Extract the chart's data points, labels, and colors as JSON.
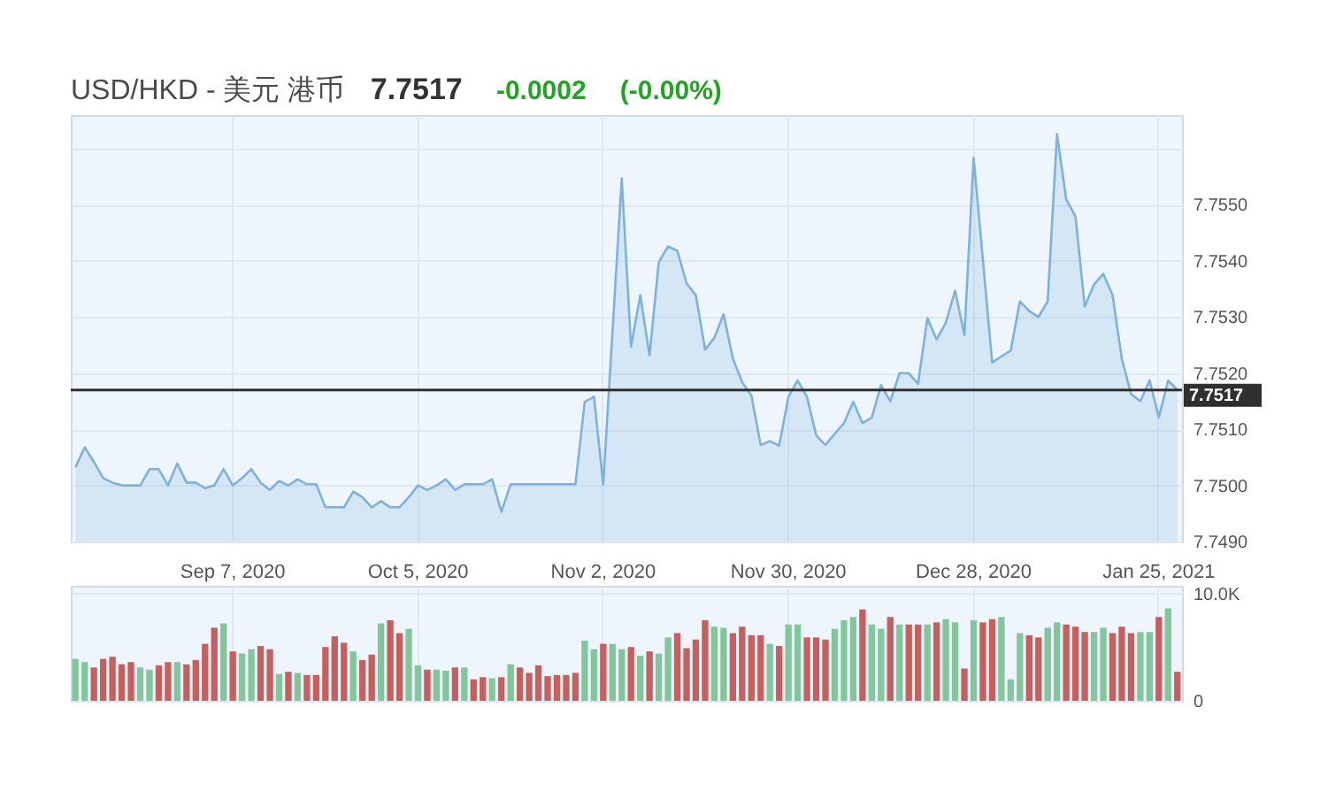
{
  "chart_data": [
    {
      "type": "area",
      "title": "USD/HKD - 美元 港币",
      "annotations": [
        "7.7517",
        "-0.0002",
        "(-0.00%)"
      ],
      "categories": [
        null,
        null,
        null,
        null,
        null,
        null,
        null,
        null,
        null,
        null,
        null,
        null,
        null,
        null,
        null,
        null,
        null,
        "Sep 7, 2020",
        null,
        null,
        null,
        null,
        null,
        null,
        null,
        null,
        null,
        null,
        null,
        null,
        null,
        null,
        null,
        null,
        null,
        null,
        null,
        "Oct 5, 2020",
        null,
        null,
        null,
        null,
        null,
        null,
        null,
        null,
        null,
        null,
        null,
        null,
        null,
        null,
        null,
        null,
        null,
        null,
        null,
        "Nov 2, 2020",
        null,
        null,
        null,
        null,
        null,
        null,
        null,
        null,
        null,
        null,
        null,
        null,
        null,
        null,
        null,
        null,
        null,
        null,
        null,
        "Nov 30, 2020",
        null,
        null,
        null,
        null,
        null,
        null,
        null,
        null,
        null,
        null,
        null,
        null,
        null,
        null,
        null,
        null,
        null,
        null,
        null,
        "Dec 28, 2020",
        null,
        null,
        null,
        null,
        null,
        null,
        null,
        null,
        null,
        null,
        null,
        null,
        null,
        null,
        null,
        null,
        null,
        null,
        null,
        "Jan 25, 2021",
        null,
        null
      ],
      "values": [
        7.75032,
        7.75068,
        7.75042,
        7.75013,
        7.75005,
        7.75,
        7.75,
        7.75,
        7.75029,
        7.75029,
        7.75,
        7.75039,
        7.75005,
        7.75005,
        7.74995,
        7.75,
        7.75029,
        7.75,
        7.75013,
        7.75029,
        7.75005,
        7.74992,
        7.75008,
        7.75,
        7.75011,
        7.75002,
        7.75002,
        7.74961,
        7.74961,
        7.74961,
        7.74989,
        7.74979,
        7.74961,
        7.74972,
        7.74961,
        7.74961,
        7.74979,
        7.75,
        7.74992,
        7.75,
        7.75011,
        7.74992,
        7.75002,
        7.75002,
        7.75002,
        7.75011,
        7.74953,
        7.75002,
        7.75002,
        7.75002,
        7.75002,
        7.75002,
        7.75002,
        7.75002,
        7.75002,
        7.75149,
        7.75158,
        7.75002,
        7.75274,
        7.75547,
        7.75247,
        7.75339,
        7.75232,
        7.75398,
        7.75426,
        7.75418,
        7.7536,
        7.75339,
        7.75242,
        7.75263,
        7.75305,
        7.75226,
        7.75184,
        7.7516,
        7.75072,
        7.75079,
        7.75071,
        7.75158,
        7.75187,
        7.75158,
        7.75089,
        7.75072,
        7.75092,
        7.75111,
        7.75149,
        7.75111,
        7.75121,
        7.75179,
        7.7515,
        7.752,
        7.752,
        7.75181,
        7.75298,
        7.7526,
        7.7529,
        7.75347,
        7.75268,
        7.75584,
        7.75402,
        7.75219,
        7.7523,
        7.7524,
        7.75328,
        7.75311,
        7.753,
        7.75328,
        7.75626,
        7.7551,
        7.75479,
        7.75319,
        7.75358,
        7.75377,
        7.75339,
        7.75226,
        7.75163,
        7.7515,
        7.75187,
        7.75121,
        7.75187,
        7.7517
      ],
      "color": "#7fb1dd",
      "ylim": [
        7.749,
        7.7566
      ],
      "yticks": [
        {
          "value": 7.749,
          "label": "7.7490"
        },
        {
          "value": 7.75,
          "label": "7.7500"
        },
        {
          "value": 7.751,
          "label": "7.7510"
        },
        {
          "value": 7.752,
          "label": "7.7520"
        },
        {
          "value": 7.753,
          "label": "7.7530"
        },
        {
          "value": 7.754,
          "label": "7.7540"
        },
        {
          "value": 7.755,
          "label": "7.7550"
        },
        {
          "value": 7.756,
          "label": null
        }
      ],
      "grid": true,
      "ref_lines": [
        {
          "axis": "y",
          "value": 7.7517,
          "label": "7.7517",
          "color": "#2f2f2f"
        }
      ]
    },
    {
      "type": "bar",
      "categories": [
        null,
        null,
        null,
        null,
        null,
        null,
        null,
        null,
        null,
        null,
        null,
        null,
        null,
        null,
        null,
        null,
        null,
        null,
        null,
        null,
        null,
        null,
        null,
        null,
        null,
        null,
        null,
        null,
        null,
        null,
        null,
        null,
        null,
        null,
        null,
        null,
        null,
        null,
        null,
        null,
        null,
        null,
        null,
        null,
        null,
        null,
        null,
        null,
        null,
        null,
        null,
        null,
        null,
        null,
        null,
        null,
        null,
        null,
        null,
        null,
        null,
        null,
        null,
        null,
        null,
        null,
        null,
        null,
        null,
        null,
        null,
        null,
        null,
        null,
        null,
        null,
        null,
        null,
        null,
        null,
        null,
        null,
        null,
        null,
        null,
        null,
        null,
        null,
        null,
        null,
        null,
        null,
        null,
        null,
        null,
        null,
        null,
        null,
        null,
        null,
        null,
        null,
        null,
        null,
        null,
        null,
        null,
        null,
        null,
        null,
        null,
        null,
        null,
        null,
        null,
        null,
        null,
        null,
        null,
        null
      ],
      "values": [
        3900,
        3600,
        3100,
        3900,
        4100,
        3400,
        3600,
        3100,
        2900,
        3300,
        3600,
        3600,
        3400,
        3800,
        5300,
        6800,
        7200,
        4600,
        4400,
        4800,
        5100,
        4800,
        2500,
        2700,
        2600,
        2400,
        2400,
        5000,
        6000,
        5400,
        4600,
        3800,
        4300,
        7200,
        7500,
        6300,
        6700,
        3300,
        2900,
        2900,
        2800,
        3100,
        3100,
        2000,
        2200,
        2100,
        2200,
        3400,
        3100,
        2600,
        3300,
        2300,
        2400,
        2400,
        2600,
        5600,
        4800,
        5300,
        5300,
        4800,
        5000,
        4200,
        4600,
        4400,
        5900,
        6300,
        4900,
        5700,
        7500,
        6900,
        6800,
        6300,
        6900,
        6100,
        6100,
        5300,
        5100,
        7100,
        7100,
        5900,
        5900,
        5700,
        6700,
        7500,
        7800,
        8500,
        7100,
        6700,
        7800,
        7100,
        7100,
        7100,
        7100,
        7300,
        7600,
        7300,
        3000,
        7500,
        7300,
        7600,
        7800,
        2000,
        6300,
        6100,
        5900,
        6800,
        7300,
        7100,
        6900,
        6400,
        6400,
        6800,
        6300,
        6900,
        6300,
        6400,
        6400,
        7800,
        8600,
        2700
      ],
      "colors": [
        "#84c69c",
        "#84c69c",
        "#c5605e",
        "#c5605e",
        "#c5605e",
        "#c5605e",
        "#c5605e",
        "#84c69c",
        "#84c69c",
        "#c5605e",
        "#c5605e",
        "#84c69c",
        "#c5605e",
        "#c5605e",
        "#c5605e",
        "#c5605e",
        "#84c69c",
        "#c5605e",
        "#84c69c",
        "#84c69c",
        "#c5605e",
        "#c5605e",
        "#84c69c",
        "#c5605e",
        "#84c69c",
        "#c5605e",
        "#c5605e",
        "#c5605e",
        "#c5605e",
        "#c5605e",
        "#84c69c",
        "#c5605e",
        "#c5605e",
        "#84c69c",
        "#c5605e",
        "#c5605e",
        "#84c69c",
        "#84c69c",
        "#c5605e",
        "#84c69c",
        "#84c69c",
        "#c5605e",
        "#84c69c",
        "#c5605e",
        "#c5605e",
        "#84c69c",
        "#c5605e",
        "#84c69c",
        "#c5605e",
        "#c5605e",
        "#c5605e",
        "#c5605e",
        "#c5605e",
        "#c5605e",
        "#c5605e",
        "#84c69c",
        "#84c69c",
        "#c5605e",
        "#84c69c",
        "#84c69c",
        "#c5605e",
        "#84c69c",
        "#c5605e",
        "#84c69c",
        "#84c69c",
        "#c5605e",
        "#c5605e",
        "#c5605e",
        "#c5605e",
        "#84c69c",
        "#84c69c",
        "#c5605e",
        "#c5605e",
        "#c5605e",
        "#c5605e",
        "#84c69c",
        "#c5605e",
        "#84c69c",
        "#84c69c",
        "#c5605e",
        "#c5605e",
        "#c5605e",
        "#84c69c",
        "#84c69c",
        "#84c69c",
        "#c5605e",
        "#84c69c",
        "#84c69c",
        "#c5605e",
        "#84c69c",
        "#c5605e",
        "#c5605e",
        "#84c69c",
        "#c5605e",
        "#84c69c",
        "#84c69c",
        "#c5605e",
        "#84c69c",
        "#c5605e",
        "#c5605e",
        "#84c69c",
        "#84c69c",
        "#84c69c",
        "#c5605e",
        "#c5605e",
        "#84c69c",
        "#84c69c",
        "#c5605e",
        "#c5605e",
        "#c5605e",
        "#84c69c",
        "#84c69c",
        "#c5605e",
        "#c5605e",
        "#c5605e",
        "#84c69c",
        "#84c69c",
        "#c5605e",
        "#84c69c",
        "#c5605e"
      ],
      "ylim": [
        0,
        10700
      ],
      "yticks": [
        0,
        {
          "value": 10000,
          "label": "10.0K"
        }
      ],
      "grid": true,
      "tick_labels": "y"
    }
  ]
}
